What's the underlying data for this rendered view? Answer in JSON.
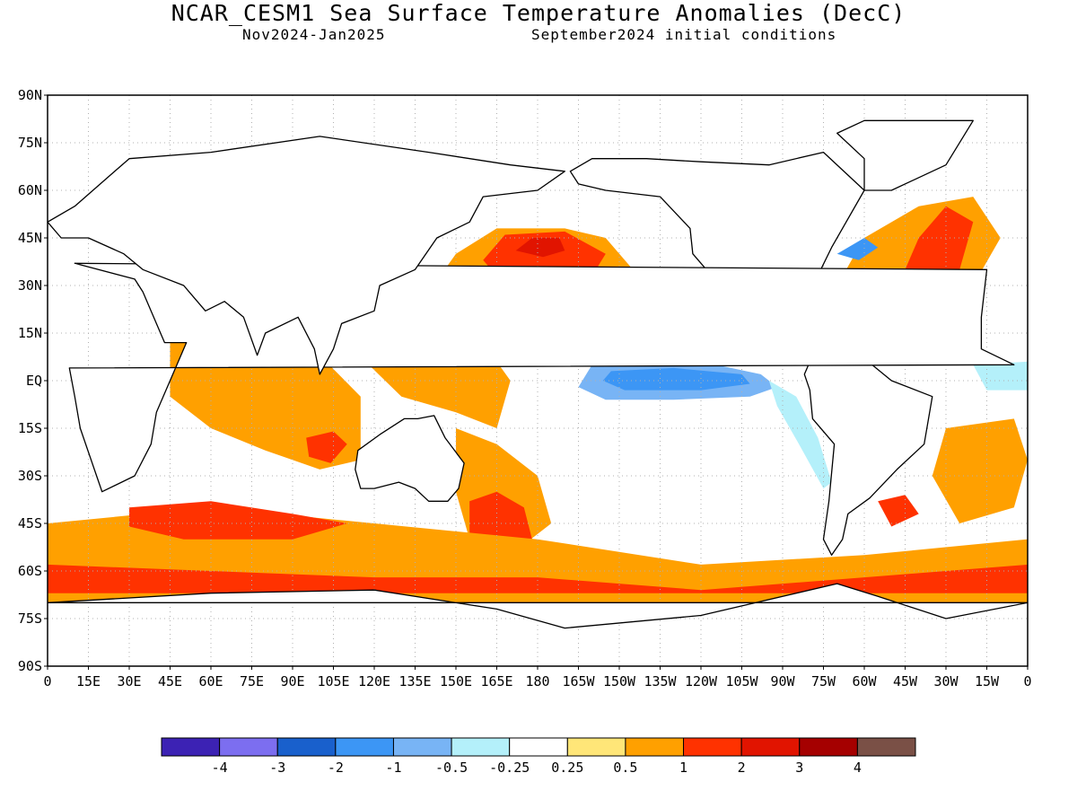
{
  "title": "NCAR_CESM1 Sea Surface Temperature Anomalies (DecC)",
  "subtitle_period": "Nov2024-Jan2025",
  "subtitle_init": "September2024 initial conditions",
  "lat_labels": [
    "90N",
    "75N",
    "60N",
    "45N",
    "30N",
    "15N",
    "EQ",
    "15S",
    "30S",
    "45S",
    "60S",
    "75S",
    "90S"
  ],
  "lon_labels": [
    "0",
    "15E",
    "30E",
    "45E",
    "60E",
    "75E",
    "90E",
    "105E",
    "120E",
    "135E",
    "150E",
    "165E",
    "180",
    "165W",
    "150W",
    "135W",
    "120W",
    "105W",
    "90W",
    "75W",
    "60W",
    "45W",
    "30W",
    "15W",
    "0"
  ],
  "colorbar": {
    "colors": [
      "#3c22b4",
      "#7c6ef0",
      "#1960cc",
      "#3c96f5",
      "#78b4f5",
      "#b4f0fa",
      "#ffffff",
      "#ffe678",
      "#ffa000",
      "#ff3200",
      "#e11400",
      "#a50000",
      "#7a5046"
    ],
    "labels": [
      "-4",
      "-3",
      "-2",
      "-1",
      "-0.5",
      "-0.25",
      "0.25",
      "0.5",
      "1",
      "2",
      "3",
      "4"
    ]
  },
  "regions": [
    {
      "name": "tropical-pacific-cold-tongue",
      "color": "#78b4f5",
      "pts": [
        [
          200,
          5
        ],
        [
          210,
          7
        ],
        [
          240,
          6
        ],
        [
          262,
          2
        ],
        [
          268,
          -2
        ],
        [
          258,
          -5
        ],
        [
          230,
          -6
        ],
        [
          205,
          -6
        ],
        [
          195,
          -2
        ]
      ]
    },
    {
      "name": "tropical-pacific-core-cold",
      "color": "#3c96f5",
      "pts": [
        [
          207,
          3
        ],
        [
          230,
          4
        ],
        [
          255,
          2
        ],
        [
          258,
          -1
        ],
        [
          240,
          -3
        ],
        [
          212,
          -3
        ],
        [
          204,
          0
        ]
      ]
    },
    {
      "name": "east-pacific-cold-band",
      "color": "#b4f0fa",
      "pts": [
        [
          265,
          0
        ],
        [
          275,
          -5
        ],
        [
          283,
          -18
        ],
        [
          288,
          -32
        ],
        [
          285,
          -34
        ],
        [
          276,
          -20
        ],
        [
          268,
          -8
        ]
      ]
    },
    {
      "name": "north-pacific-warm-blob",
      "color": "#ffa000",
      "pts": [
        [
          140,
          28
        ],
        [
          150,
          40
        ],
        [
          165,
          48
        ],
        [
          190,
          48
        ],
        [
          205,
          45
        ],
        [
          215,
          35
        ],
        [
          205,
          25
        ],
        [
          185,
          15
        ],
        [
          160,
          12
        ],
        [
          145,
          18
        ]
      ]
    },
    {
      "name": "north-pacific-hot-core",
      "color": "#ff3200",
      "pts": [
        [
          160,
          38
        ],
        [
          168,
          46
        ],
        [
          190,
          47
        ],
        [
          205,
          40
        ],
        [
          200,
          33
        ],
        [
          180,
          32
        ],
        [
          165,
          33
        ]
      ]
    },
    {
      "name": "north-pacific-max",
      "color": "#e11400",
      "pts": [
        [
          172,
          41
        ],
        [
          178,
          45
        ],
        [
          188,
          45
        ],
        [
          190,
          41
        ],
        [
          182,
          39
        ]
      ]
    },
    {
      "name": "west-pacific-warm-pool",
      "color": "#ffa000",
      "pts": [
        [
          115,
          22
        ],
        [
          130,
          30
        ],
        [
          145,
          28
        ],
        [
          160,
          12
        ],
        [
          170,
          0
        ],
        [
          165,
          -15
        ],
        [
          150,
          -10
        ],
        [
          130,
          -5
        ],
        [
          118,
          5
        ]
      ]
    },
    {
      "name": "indian-ocean-warm",
      "color": "#ffa000",
      "pts": [
        [
          45,
          12
        ],
        [
          60,
          20
        ],
        [
          75,
          15
        ],
        [
          90,
          18
        ],
        [
          100,
          8
        ],
        [
          115,
          -5
        ],
        [
          115,
          -25
        ],
        [
          100,
          -28
        ],
        [
          80,
          -22
        ],
        [
          60,
          -15
        ],
        [
          45,
          -5
        ]
      ]
    },
    {
      "name": "indian-ocean-hot-spot",
      "color": "#ff3200",
      "pts": [
        [
          95,
          -18
        ],
        [
          105,
          -16
        ],
        [
          110,
          -20
        ],
        [
          104,
          -26
        ],
        [
          96,
          -24
        ]
      ]
    },
    {
      "name": "southwest-pacific-warm",
      "color": "#ffa000",
      "pts": [
        [
          150,
          -15
        ],
        [
          165,
          -20
        ],
        [
          180,
          -30
        ],
        [
          185,
          -45
        ],
        [
          170,
          -55
        ],
        [
          155,
          -50
        ],
        [
          150,
          -35
        ]
      ]
    },
    {
      "name": "tasman-hot",
      "color": "#ff3200",
      "pts": [
        [
          155,
          -38
        ],
        [
          165,
          -35
        ],
        [
          175,
          -40
        ],
        [
          178,
          -50
        ],
        [
          168,
          -55
        ],
        [
          155,
          -50
        ]
      ]
    },
    {
      "name": "southern-ocean-band",
      "color": "#ffa000",
      "pts": [
        [
          0,
          -45
        ],
        [
          60,
          -40
        ],
        [
          120,
          -45
        ],
        [
          180,
          -50
        ],
        [
          240,
          -58
        ],
        [
          300,
          -55
        ],
        [
          360,
          -50
        ],
        [
          360,
          -70
        ],
        [
          0,
          -70
        ]
      ]
    },
    {
      "name": "southern-ocean-hot",
      "color": "#ff3200",
      "pts": [
        [
          0,
          -58
        ],
        [
          60,
          -60
        ],
        [
          120,
          -62
        ],
        [
          180,
          -62
        ],
        [
          240,
          -66
        ],
        [
          300,
          -62
        ],
        [
          360,
          -58
        ],
        [
          360,
          -67
        ],
        [
          0,
          -67
        ]
      ]
    },
    {
      "name": "south-indian-hot",
      "color": "#ff3200",
      "pts": [
        [
          30,
          -40
        ],
        [
          60,
          -38
        ],
        [
          90,
          -42
        ],
        [
          110,
          -45
        ],
        [
          90,
          -50
        ],
        [
          50,
          -50
        ],
        [
          30,
          -46
        ]
      ]
    },
    {
      "name": "north-atlantic-warm",
      "color": "#ffa000",
      "pts": [
        [
          280,
          20
        ],
        [
          290,
          30
        ],
        [
          300,
          45
        ],
        [
          320,
          55
        ],
        [
          340,
          58
        ],
        [
          350,
          45
        ],
        [
          340,
          30
        ],
        [
          330,
          15
        ],
        [
          305,
          15
        ]
      ]
    },
    {
      "name": "north-atlantic-hot",
      "color": "#ff3200",
      "pts": [
        [
          315,
          35
        ],
        [
          320,
          45
        ],
        [
          330,
          55
        ],
        [
          340,
          50
        ],
        [
          335,
          35
        ],
        [
          325,
          28
        ]
      ]
    },
    {
      "name": "gulf-stream-cold",
      "color": "#3c96f5",
      "pts": [
        [
          290,
          40
        ],
        [
          300,
          45
        ],
        [
          305,
          42
        ],
        [
          298,
          38
        ]
      ]
    },
    {
      "name": "south-atlantic-warm",
      "color": "#ffa000",
      "pts": [
        [
          330,
          -15
        ],
        [
          355,
          -12
        ],
        [
          360,
          -25
        ],
        [
          355,
          -40
        ],
        [
          335,
          -45
        ],
        [
          325,
          -30
        ]
      ]
    },
    {
      "name": "south-atlantic-hot",
      "color": "#ff3200",
      "pts": [
        [
          305,
          -38
        ],
        [
          315,
          -36
        ],
        [
          320,
          -42
        ],
        [
          310,
          -46
        ]
      ]
    },
    {
      "name": "tropical-atlantic-cold",
      "color": "#b4f0fa",
      "pts": [
        [
          340,
          5
        ],
        [
          360,
          6
        ],
        [
          360,
          -3
        ],
        [
          345,
          -3
        ]
      ]
    }
  ],
  "coasts": [
    {
      "name": "north-america-coast",
      "pts": [
        [
          192,
          66
        ],
        [
          200,
          70
        ],
        [
          220,
          70
        ],
        [
          240,
          69
        ],
        [
          265,
          68
        ],
        [
          285,
          72
        ],
        [
          300,
          60
        ],
        [
          292,
          48
        ],
        [
          288,
          42
        ],
        [
          284,
          35
        ],
        [
          279,
          30
        ],
        [
          275,
          25
        ],
        [
          262,
          22
        ],
        [
          255,
          20
        ],
        [
          250,
          28
        ],
        [
          245,
          32
        ],
        [
          237,
          40
        ],
        [
          236,
          48
        ],
        [
          225,
          58
        ],
        [
          205,
          60
        ],
        [
          195,
          62
        ]
      ]
    },
    {
      "name": "south-america-coast",
      "pts": [
        [
          282,
          10
        ],
        [
          300,
          7
        ],
        [
          310,
          0
        ],
        [
          325,
          -5
        ],
        [
          322,
          -20
        ],
        [
          312,
          -28
        ],
        [
          302,
          -37
        ],
        [
          294,
          -42
        ],
        [
          292,
          -50
        ],
        [
          288,
          -55
        ],
        [
          285,
          -50
        ],
        [
          287,
          -38
        ],
        [
          289,
          -20
        ],
        [
          281,
          -12
        ],
        [
          280,
          -3
        ],
        [
          278,
          2
        ]
      ]
    },
    {
      "name": "africa-coast",
      "pts": [
        [
          345,
          35
        ],
        [
          10,
          37
        ],
        [
          32,
          32
        ],
        [
          35,
          28
        ],
        [
          43,
          12
        ],
        [
          51,
          12
        ],
        [
          45,
          0
        ],
        [
          40,
          -10
        ],
        [
          38,
          -20
        ],
        [
          32,
          -30
        ],
        [
          20,
          -35
        ],
        [
          18,
          -30
        ],
        [
          12,
          -15
        ],
        [
          10,
          -5
        ],
        [
          8,
          4
        ],
        [
          355,
          5
        ],
        [
          343,
          10
        ],
        [
          343,
          20
        ]
      ]
    },
    {
      "name": "eurasia-coast",
      "pts": [
        [
          10,
          55
        ],
        [
          30,
          70
        ],
        [
          60,
          72
        ],
        [
          100,
          77
        ],
        [
          140,
          72
        ],
        [
          170,
          68
        ],
        [
          190,
          66
        ],
        [
          180,
          60
        ],
        [
          160,
          58
        ],
        [
          155,
          50
        ],
        [
          143,
          45
        ],
        [
          135,
          35
        ],
        [
          122,
          30
        ],
        [
          120,
          22
        ],
        [
          108,
          18
        ],
        [
          105,
          10
        ],
        [
          100,
          2
        ],
        [
          98,
          10
        ],
        [
          92,
          20
        ],
        [
          80,
          15
        ],
        [
          77,
          8
        ],
        [
          72,
          20
        ],
        [
          65,
          25
        ],
        [
          58,
          22
        ],
        [
          52,
          28
        ],
        [
          50,
          30
        ],
        [
          35,
          35
        ],
        [
          28,
          40
        ],
        [
          15,
          45
        ],
        [
          5,
          45
        ],
        [
          0,
          50
        ]
      ]
    },
    {
      "name": "australia-coast",
      "pts": [
        [
          114,
          -22
        ],
        [
          122,
          -17
        ],
        [
          131,
          -12
        ],
        [
          136,
          -12
        ],
        [
          142,
          -11
        ],
        [
          146,
          -18
        ],
        [
          153,
          -26
        ],
        [
          151,
          -34
        ],
        [
          147,
          -38
        ],
        [
          140,
          -38
        ],
        [
          135,
          -34
        ],
        [
          129,
          -32
        ],
        [
          120,
          -34
        ],
        [
          115,
          -34
        ],
        [
          113,
          -28
        ]
      ]
    },
    {
      "name": "antarctica-coast",
      "pts": [
        [
          0,
          -70
        ],
        [
          60,
          -67
        ],
        [
          120,
          -66
        ],
        [
          165,
          -72
        ],
        [
          190,
          -78
        ],
        [
          240,
          -74
        ],
        [
          290,
          -64
        ],
        [
          305,
          -68
        ],
        [
          330,
          -75
        ],
        [
          360,
          -70
        ]
      ]
    },
    {
      "name": "greenland-coast",
      "pts": [
        [
          300,
          60
        ],
        [
          310,
          60
        ],
        [
          330,
          68
        ],
        [
          340,
          82
        ],
        [
          300,
          82
        ],
        [
          290,
          78
        ],
        [
          300,
          70
        ]
      ]
    }
  ]
}
